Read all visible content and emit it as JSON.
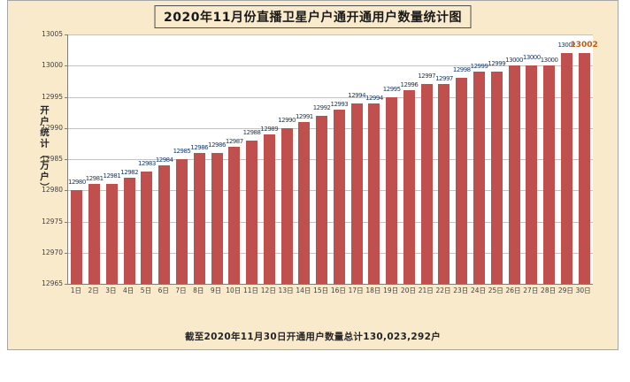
{
  "chart": {
    "title": "2020年11月份直播卫星户户通开通用户数量统计图",
    "y_axis_title": "开户统计（万户）",
    "footnote": "截至2020年11月30日开通用户数量总计130,023,292户",
    "colors": {
      "background": "#F9EACB",
      "plot_background": "#FFFFFF",
      "bar": "#C0504D",
      "gridline": "#C3C3C3",
      "axis_line": "#7F7F7F",
      "value_label": "#17375E",
      "highlight_value_label": "#C55A11",
      "axis_text": "#404040",
      "title_text": "#1A1A1A",
      "footnote_text": "#262626"
    }
  },
  "chart_data": {
    "type": "bar",
    "title": "2020年11月份直播卫星户户通开通用户数量统计图",
    "xlabel": "",
    "ylabel": "开户统计（万户）",
    "ylim": [
      12965,
      13005
    ],
    "yticks": [
      12965,
      12970,
      12975,
      12980,
      12985,
      12990,
      12995,
      13000,
      13005
    ],
    "grid": true,
    "legend": false,
    "bar_labels_visible": true,
    "categories": [
      "1日",
      "2日",
      "3日",
      "4日",
      "5日",
      "6日",
      "7日",
      "8日",
      "9日",
      "10日",
      "11日",
      "12日",
      "13日",
      "14日",
      "15日",
      "16日",
      "17日",
      "18日",
      "19日",
      "20日",
      "21日",
      "22日",
      "23日",
      "24日",
      "25日",
      "26日",
      "27日",
      "28日",
      "29日",
      "30日"
    ],
    "values": [
      12980,
      12981,
      12981,
      12982,
      12983,
      12984,
      12985,
      12986,
      12986,
      12987,
      12988,
      12989,
      12990,
      12991,
      12992,
      12993,
      12994,
      12994,
      12995,
      12996,
      12997,
      12997,
      12998,
      12999,
      12999,
      13000,
      13000,
      13000,
      13002,
      13002
    ]
  }
}
